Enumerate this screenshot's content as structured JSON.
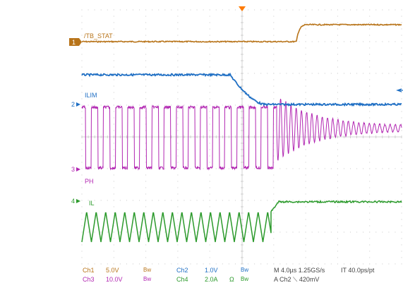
{
  "colors": {
    "ch1": "#b8741a",
    "ch2": "#1f6fc4",
    "ch3": "#b227b2",
    "ch4": "#2c9a2c",
    "grid": "#c8c8c8",
    "text": "#555555",
    "trigger": "#ff7a00"
  },
  "channels": {
    "ch1": {
      "marker": "1",
      "label": "/TB_STAT"
    },
    "ch2": {
      "marker": "2",
      "label": "ILIM"
    },
    "ch3": {
      "marker": "3",
      "label": "PH"
    },
    "ch4": {
      "marker": "4",
      "label": "IL"
    }
  },
  "status": {
    "row1": {
      "ch1_name": "Ch1",
      "ch1_scale": "5.0V",
      "ch1_bw": "Bw",
      "ch2_name": "Ch2",
      "ch2_scale": "1.0V",
      "ch2_bw": "Bw",
      "timebase": "M 4.0µs 1.25GS/s",
      "interp": "IT 40.0ps/pt"
    },
    "row2": {
      "ch3_name": "Ch3",
      "ch3_scale": "10.0V",
      "ch3_bw": "Bw",
      "ch4_name": "Ch4",
      "ch4_scale": "2.0A",
      "ch4_ohm": "Ω",
      "ch4_bw": "Bw",
      "trigger": "A  Ch2  ⟍  420mV"
    }
  }
}
